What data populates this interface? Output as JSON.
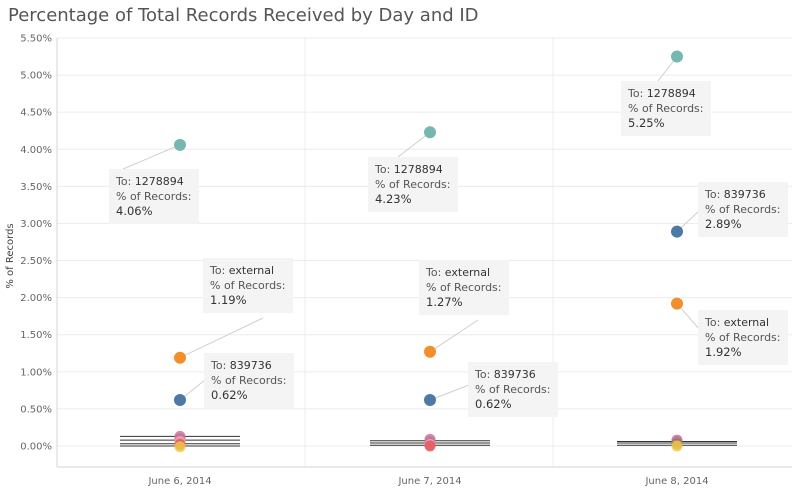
{
  "chart_data": {
    "type": "scatter",
    "title": "Percentage of Total Records Received by Day and ID",
    "ylabel": "% of Records",
    "xlabel": "",
    "categories": [
      "June 6, 2014",
      "June 7, 2014",
      "June 8, 2014"
    ],
    "y_ticks": [
      "0.00%",
      "0.50%",
      "1.00%",
      "1.50%",
      "2.00%",
      "2.50%",
      "3.00%",
      "3.50%",
      "4.00%",
      "4.50%",
      "5.00%",
      "5.50%"
    ],
    "ylim": [
      0,
      5.5
    ],
    "grid": true,
    "series": [
      {
        "name": "1278894",
        "color": "#76b7b2",
        "values": [
          4.06,
          4.23,
          5.25
        ],
        "labels": [
          "4.06%",
          "4.23%",
          "5.25%"
        ]
      },
      {
        "name": "external",
        "color": "#f28e2b",
        "values": [
          1.19,
          1.27,
          1.92
        ],
        "labels": [
          "1.19%",
          "1.27%",
          "1.92%"
        ]
      },
      {
        "name": "839736",
        "color": "#4e79a7",
        "values": [
          0.62,
          0.62,
          2.89
        ],
        "labels": [
          "0.62%",
          "0.62%",
          "2.89%"
        ]
      }
    ],
    "small_points": [
      {
        "category": 0,
        "value": 0.13,
        "color": "#d37295"
      },
      {
        "category": 0,
        "value": 0.1,
        "color": "#b07aa1"
      },
      {
        "category": 0,
        "value": 0.06,
        "color": "#ff9da7"
      },
      {
        "category": 0,
        "value": 0.02,
        "color": "#e15759"
      },
      {
        "category": 0,
        "value": -0.01,
        "color": "#edc948"
      },
      {
        "category": 1,
        "value": 0.09,
        "color": "#d37295"
      },
      {
        "category": 1,
        "value": 0.06,
        "color": "#b07aa1"
      },
      {
        "category": 1,
        "value": 0.02,
        "color": "#ff9da7"
      },
      {
        "category": 1,
        "value": 0.0,
        "color": "#e15759"
      },
      {
        "category": 2,
        "value": 0.08,
        "color": "#d37295"
      },
      {
        "category": 2,
        "value": 0.06,
        "color": "#b07aa1"
      },
      {
        "category": 2,
        "value": 0.03,
        "color": "#9c755f"
      },
      {
        "category": 2,
        "value": 0.0,
        "color": "#edc948"
      }
    ],
    "reference_lines": [
      {
        "category": 0,
        "values": [
          0.13,
          0.08,
          0.03,
          0.0
        ]
      },
      {
        "category": 1,
        "values": [
          0.07,
          0.04,
          0.01
        ]
      },
      {
        "category": 2,
        "values": [
          0.06,
          0.04,
          0.01
        ]
      }
    ],
    "annotations": [
      {
        "category": 0,
        "series": "1278894",
        "to_prefix": "To: ",
        "id": "1278894",
        "metric": "% of Records:",
        "value": "4.06%"
      },
      {
        "category": 1,
        "series": "1278894",
        "to_prefix": "To: ",
        "id": "1278894",
        "metric": "% of Records:",
        "value": "4.23%"
      },
      {
        "category": 2,
        "series": "1278894",
        "to_prefix": "To: ",
        "id": "1278894",
        "metric": "% of Records:",
        "value": "5.25%"
      },
      {
        "category": 0,
        "series": "external",
        "to_prefix": "To: ",
        "id": "external",
        "metric": "% of Records:",
        "value": "1.19%"
      },
      {
        "category": 1,
        "series": "external",
        "to_prefix": "To: ",
        "id": "external",
        "metric": "% of Records:",
        "value": "1.27%"
      },
      {
        "category": 2,
        "series": "external",
        "to_prefix": "To: ",
        "id": "external",
        "metric": "% of Records:",
        "value": "1.92%"
      },
      {
        "category": 0,
        "series": "839736",
        "to_prefix": "To: ",
        "id": "839736",
        "metric": "% of Records:",
        "value": "0.62%"
      },
      {
        "category": 1,
        "series": "839736",
        "to_prefix": "To: ",
        "id": "839736",
        "metric": "% of Records:",
        "value": "0.62%"
      },
      {
        "category": 2,
        "series": "839736",
        "to_prefix": "To: ",
        "id": "839736",
        "metric": "% of Records:",
        "value": "2.89%"
      }
    ]
  }
}
